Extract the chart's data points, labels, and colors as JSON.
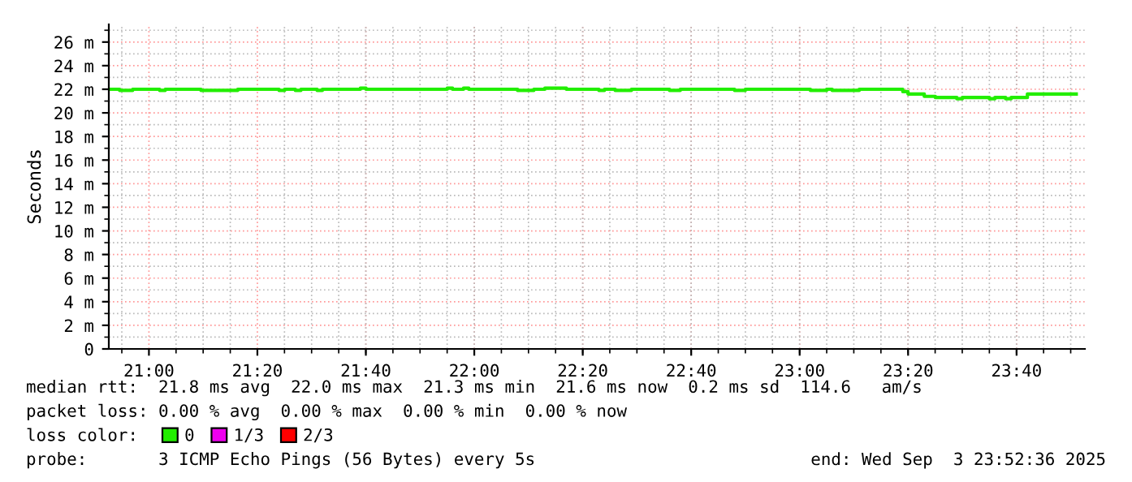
{
  "chart_data": {
    "type": "step",
    "ylabel": "Seconds",
    "legend_title": "loss color:",
    "legend": "bottom left",
    "grid": true,
    "marker": "none",
    "line_style": "solid",
    "xlim": [
      20.8767,
      23.8767
    ],
    "xticks": [
      {
        "value": 21,
        "label": "21:00"
      },
      {
        "value": 21.3333,
        "label": "21:20"
      },
      {
        "value": 21.6667,
        "label": "21:40"
      },
      {
        "value": 22,
        "label": "22:00"
      },
      {
        "value": 22.3333,
        "label": "22:20"
      },
      {
        "value": 22.6667,
        "label": "22:40"
      },
      {
        "value": 23,
        "label": "23:00"
      },
      {
        "value": 23.3333,
        "label": "23:20"
      },
      {
        "value": 23.6667,
        "label": "23:40"
      }
    ],
    "ylim": [
      0,
      27.5
    ],
    "yticks": [
      0,
      {
        "value": 2,
        "label": "2 m"
      },
      {
        "value": 4,
        "label": "4 m"
      },
      {
        "value": 6,
        "label": "6 m"
      },
      {
        "value": 8,
        "label": "8 m"
      },
      {
        "value": 10,
        "label": "10 m"
      },
      {
        "value": 12,
        "label": "12 m"
      },
      {
        "value": 14,
        "label": "14 m"
      },
      {
        "value": 16,
        "label": "16 m"
      },
      {
        "value": 18,
        "label": "18 m"
      },
      {
        "value": 20,
        "label": "20 m"
      },
      {
        "value": 22,
        "label": "22 m"
      },
      {
        "value": 24,
        "label": "24 m"
      },
      {
        "value": 26,
        "label": "26 m"
      }
    ],
    "x": [
      20.883,
      20.91,
      20.95,
      21.033,
      21.05,
      21.16,
      21.273,
      21.4,
      21.417,
      21.45,
      21.467,
      21.517,
      21.533,
      21.65,
      21.667,
      21.917,
      21.933,
      21.967,
      21.983,
      22.133,
      22.183,
      22.217,
      22.283,
      22.383,
      22.4,
      22.433,
      22.483,
      22.6,
      22.633,
      22.8,
      22.833,
      23.033,
      23.083,
      23.1,
      23.183,
      23.317,
      23.333,
      23.383,
      23.417,
      23.483,
      23.5,
      23.583,
      23.6,
      23.633,
      23.65,
      23.7,
      23.85
    ],
    "series": [
      {
        "name": "0",
        "color": "#22ee00",
        "values": [
          22.0,
          21.9,
          22.0,
          21.9,
          22.0,
          21.9,
          22.0,
          21.9,
          22.0,
          21.9,
          22.0,
          21.9,
          22.0,
          22.1,
          22.0,
          22.1,
          22.0,
          22.1,
          22.0,
          21.9,
          22.0,
          22.1,
          22.0,
          21.9,
          22.0,
          21.9,
          22.0,
          21.9,
          22.0,
          21.9,
          22.0,
          21.9,
          22.0,
          21.9,
          22.0,
          21.8,
          21.6,
          21.4,
          21.3,
          21.2,
          21.3,
          21.2,
          21.3,
          21.2,
          21.3,
          21.6,
          21.6
        ]
      },
      {
        "name": "1/3",
        "color": "#ee00ee",
        "values": [
          null,
          null,
          null,
          null,
          null,
          null,
          null,
          null,
          null,
          null,
          null,
          null,
          null,
          null,
          null,
          null,
          null,
          null,
          null,
          null,
          null,
          null,
          null,
          null,
          null,
          null,
          null,
          null,
          null,
          null,
          null,
          null,
          null,
          null,
          null,
          null,
          null,
          null,
          null,
          null,
          null,
          null,
          null,
          null,
          null,
          null,
          null
        ]
      },
      {
        "name": "2/3",
        "color": "#ff0000",
        "values": [
          null,
          null,
          null,
          null,
          null,
          null,
          null,
          null,
          null,
          null,
          null,
          null,
          null,
          null,
          null,
          null,
          null,
          null,
          null,
          null,
          null,
          null,
          null,
          null,
          null,
          null,
          null,
          null,
          null,
          null,
          null,
          null,
          null,
          null,
          null,
          null,
          null,
          null,
          null,
          null,
          null,
          null,
          null,
          null,
          null,
          null,
          null
        ]
      }
    ],
    "annotations": [
      "median rtt:  21.8 ms avg  22.0 ms max  21.3 ms min  21.6 ms now  0.2 ms sd  114.6   am/s",
      "packet loss: 0.00 % avg  0.00 % max  0.00 % min  0.00 % now",
      "probe:       3 ICMP Echo Pings (56 Bytes) every 5s",
      "end: Wed Sep  3 23:52:36 2025"
    ]
  }
}
